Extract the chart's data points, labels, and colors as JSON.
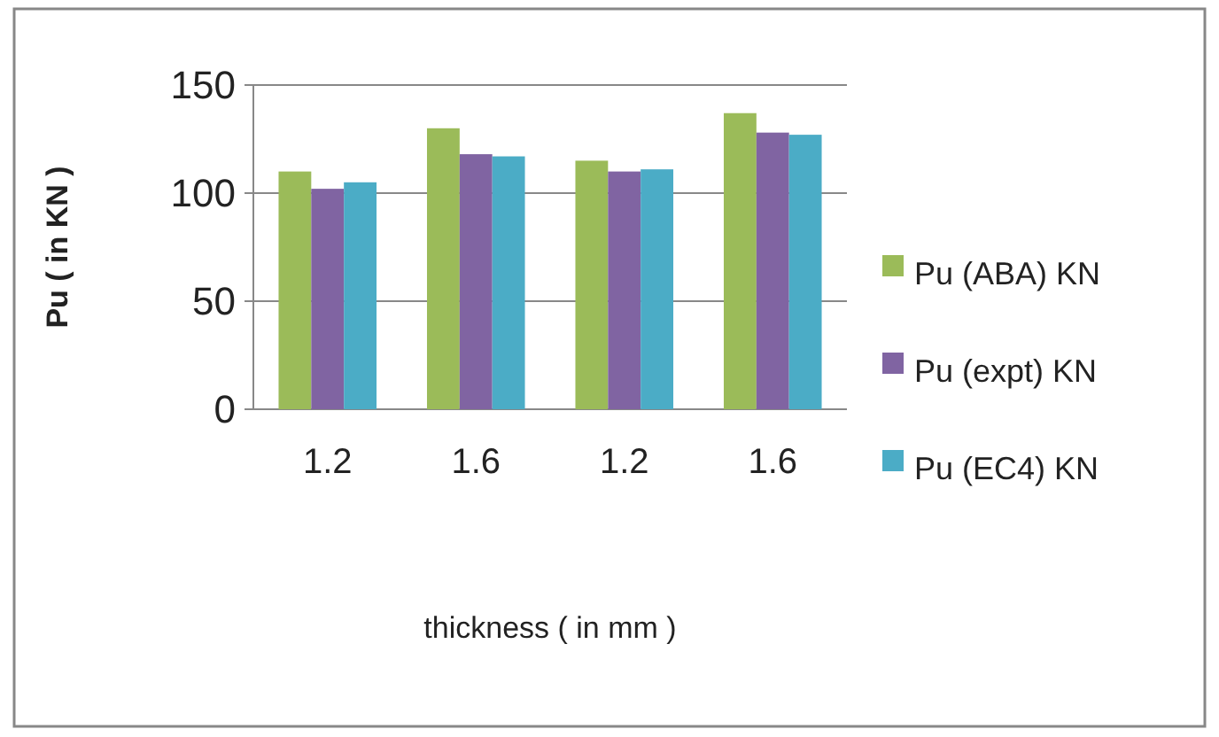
{
  "chart_data": {
    "type": "bar",
    "xlabel": "thickness ( in mm )",
    "ylabel": "Pu (  in KN )",
    "categories": [
      "1.2",
      "1.6",
      "1.2",
      "1.6"
    ],
    "series": [
      {
        "name": "Pu (ABA) KN",
        "color": "#9bbb59",
        "values": [
          110,
          130,
          115,
          137
        ]
      },
      {
        "name": "Pu (expt) KN",
        "color": "#8064a2",
        "values": [
          102,
          118,
          110,
          128
        ]
      },
      {
        "name": "Pu (EC4) KN",
        "color": "#4bacc6",
        "values": [
          105,
          117,
          111,
          127
        ]
      }
    ],
    "ylim": [
      0,
      150
    ],
    "yticks": [
      0,
      50,
      100,
      150
    ],
    "grid": "y",
    "legend": "right"
  }
}
